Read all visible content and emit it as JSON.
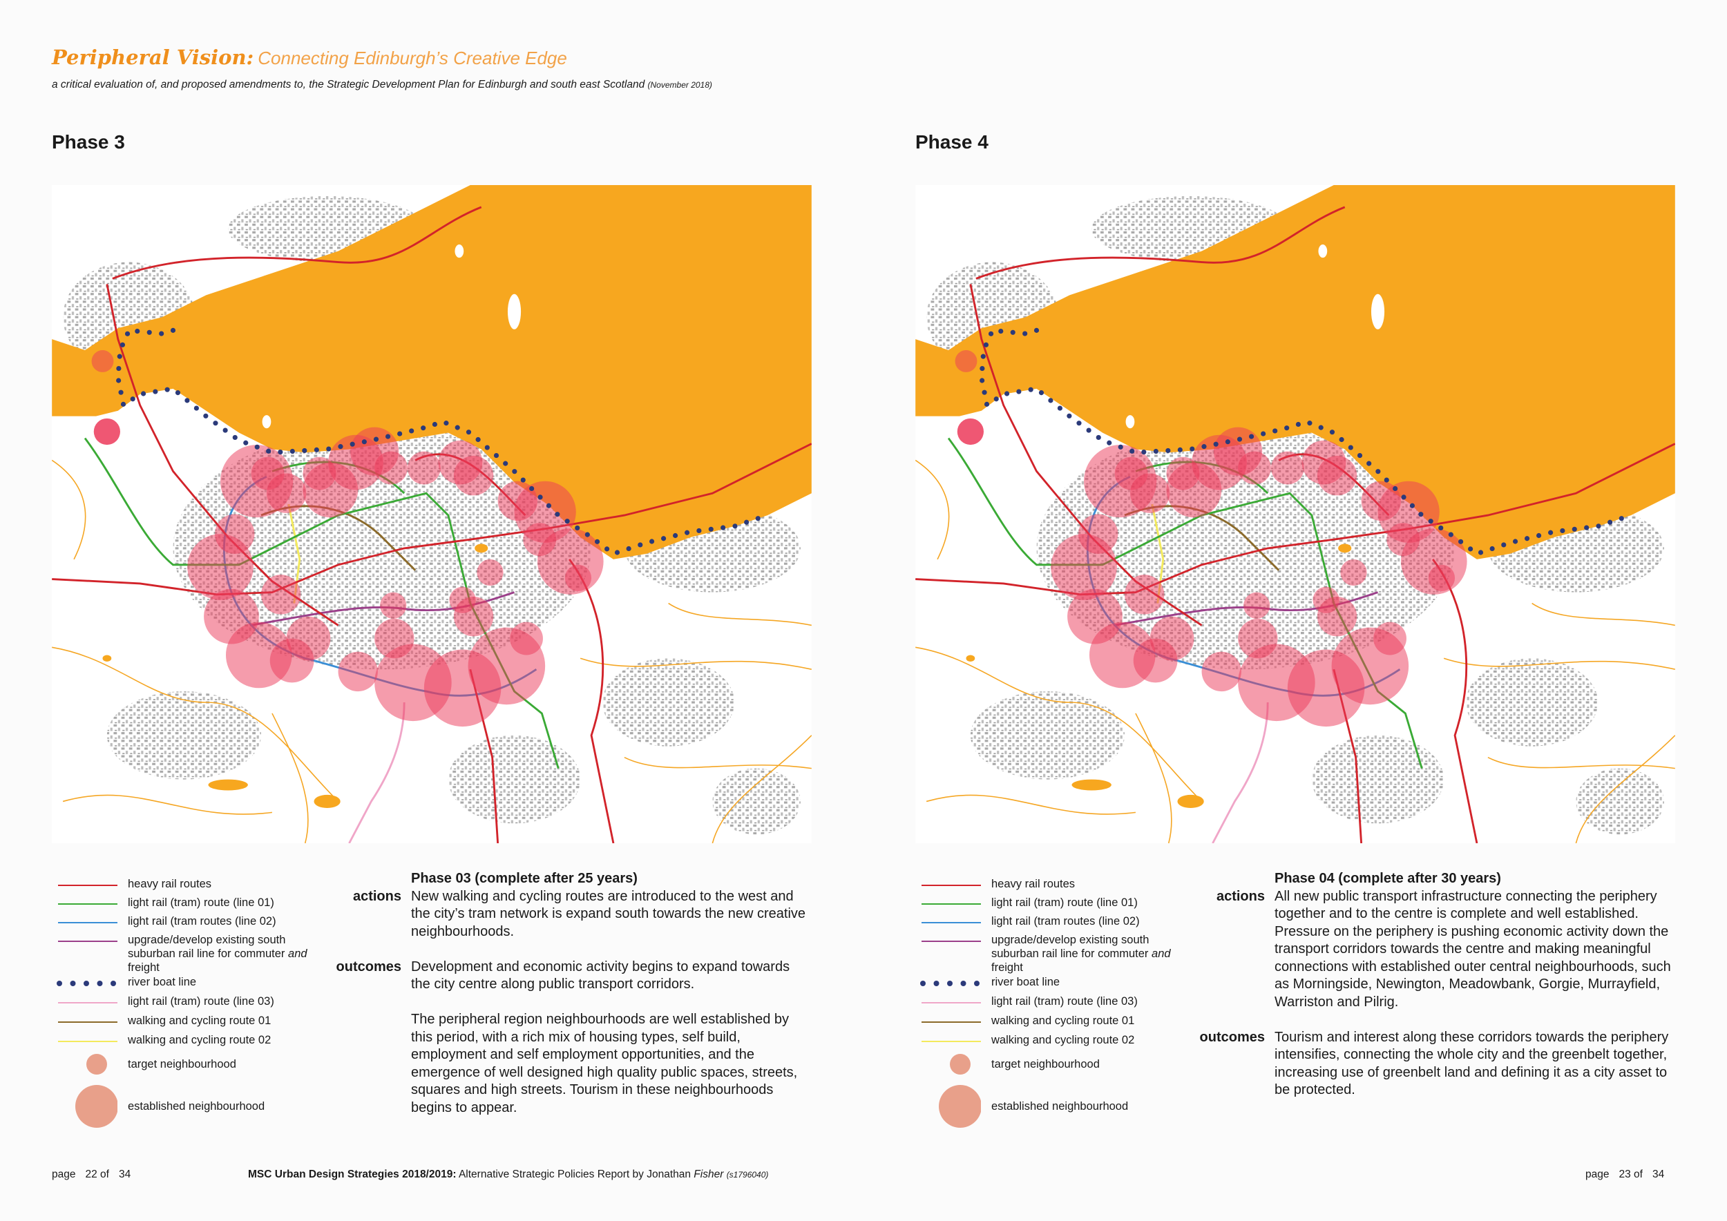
{
  "header": {
    "title": "Peripheral Vision:",
    "subtitle": "Connecting Edinburgh’s Creative Edge",
    "description": "a critical evaluation of, and proposed amendments to, the Strategic Development Plan for Edinburgh and south east Scotland",
    "date": "(November 2018)"
  },
  "legend": [
    {
      "label": "heavy rail routes"
    },
    {
      "label": "light rail (tram) route (line 01)"
    },
    {
      "label": "light rail (tram routes (line 02)"
    },
    {
      "label": "upgrade/develop existing south suburban rail line for commuter",
      "label_italic": "and",
      "label_end": "freight"
    },
    {
      "label": "river boat line"
    },
    {
      "label": "light rail (tram) route (line 03)"
    },
    {
      "label": "walking and cycling route 01"
    },
    {
      "label": "walking and cycling route 02"
    },
    {
      "label": "target neighbourhood"
    },
    {
      "label": "established neighbourhood"
    }
  ],
  "pages": [
    {
      "phase_title": "Phase 3",
      "heading": "Phase 03  (complete after 25 years)",
      "sections": [
        {
          "label": "actions",
          "paragraphs": [
            "New walking and cycling routes are introduced to the west and the city’s tram network is expand south towards the new creative neighbourhoods."
          ]
        },
        {
          "label": "outcomes",
          "paragraphs": [
            "Development and economic activity begins to expand towards the city centre along public transport corridors.",
            "The peripheral region neighbourhoods are well established by this period, with a rich mix of housing types, self build, employment and self employment opportunities, and the emergence of well designed high quality public spaces, streets, squares and high streets.  Tourism in these neighbourhoods begins to appear."
          ]
        }
      ],
      "footer": {
        "page_label": "page",
        "page_number": "22",
        "of": "of",
        "total": "34"
      }
    },
    {
      "phase_title": "Phase 4",
      "heading": "Phase 04  (complete after 30 years)",
      "sections": [
        {
          "label": "actions",
          "paragraphs": [
            "All new public transport infrastructure connecting the periphery together and to the centre is complete and well established.  Pressure on the periphery is pushing economic activity down the transport corridors towards the centre and making meaningful connections with established outer central neighbourhoods, such as Morningside, Newington, Meadowbank, Gorgie, Murrayfield, Warriston and Pilrig."
          ]
        },
        {
          "label": "outcomes",
          "paragraphs": [
            "Tourism and interest along these corridors towards the periphery intensifies, connecting the whole city and the greenbelt together, increasing use of greenbelt land and defining it as a city asset to be protected."
          ]
        }
      ],
      "footer": {
        "page_label": "page",
        "page_number": "23",
        "of": "of",
        "total": "34"
      }
    }
  ],
  "footer_center": {
    "course": "MSC Urban Design Strategies 2018/2019:",
    "text": "Alternative Strategic Policies Report by Jonathan",
    "author_surname": "Fisher",
    "student_id": "(s1796040)"
  }
}
